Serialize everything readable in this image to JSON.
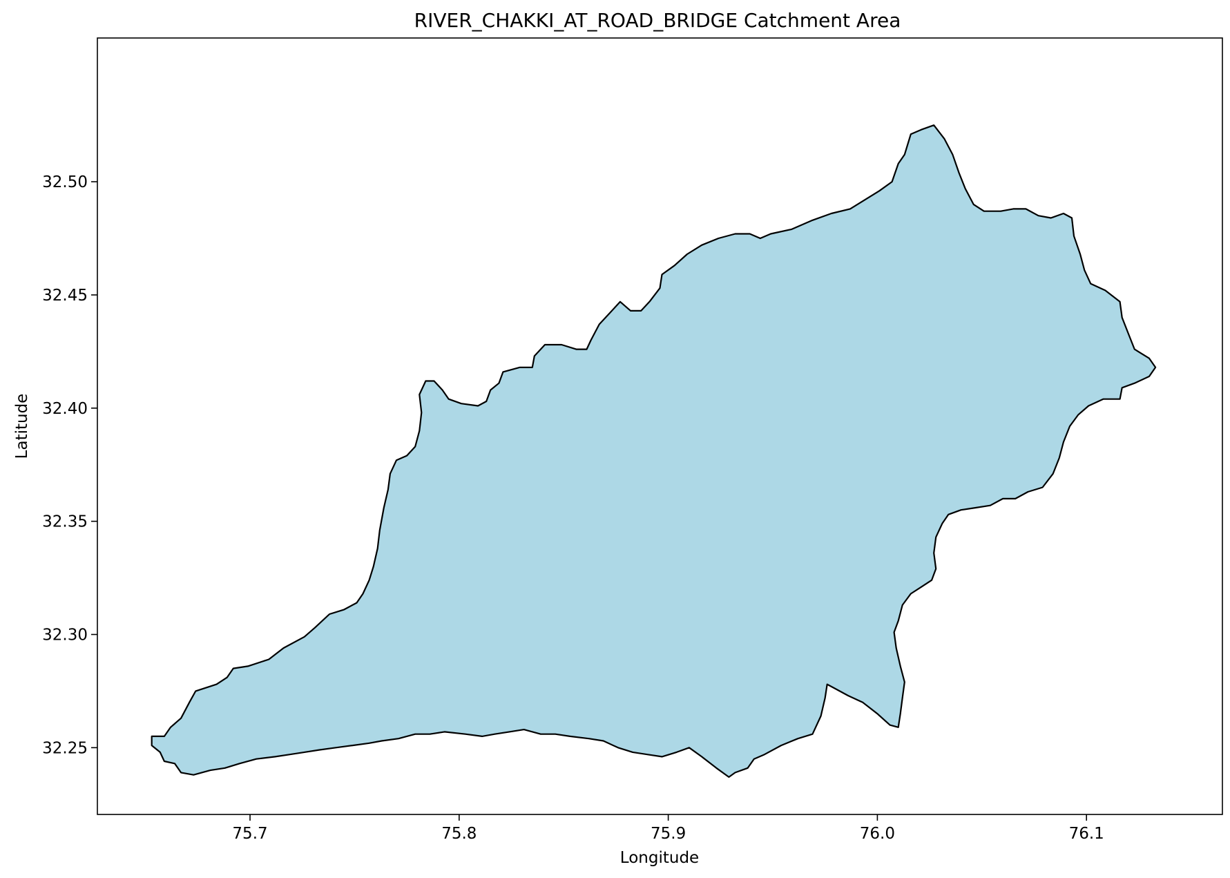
{
  "chart_data": {
    "type": "map",
    "title": "RIVER_CHAKKI_AT_ROAD_BRIDGE Catchment Area",
    "xlabel": "Longitude",
    "ylabel": "Latitude",
    "xlim": [
      75.627,
      76.165
    ],
    "ylim": [
      32.2205,
      32.5635
    ],
    "x_ticks": [
      {
        "value": 75.7,
        "label": "75.7"
      },
      {
        "value": 75.8,
        "label": "75.8"
      },
      {
        "value": 75.9,
        "label": "75.9"
      },
      {
        "value": 76.0,
        "label": "76.0"
      },
      {
        "value": 76.1,
        "label": "76.1"
      }
    ],
    "y_ticks": [
      {
        "value": 32.25,
        "label": "32.25"
      },
      {
        "value": 32.3,
        "label": "32.30"
      },
      {
        "value": 32.35,
        "label": "32.35"
      },
      {
        "value": 32.4,
        "label": "32.40"
      },
      {
        "value": 32.45,
        "label": "32.45"
      },
      {
        "value": 32.5,
        "label": "32.50"
      }
    ],
    "grid": false,
    "legend": "none",
    "fill_color": "#add8e6",
    "edge_color": "#000000",
    "catchment_boundary": [
      [
        75.653,
        32.251
      ],
      [
        75.653,
        32.255
      ],
      [
        75.659,
        32.255
      ],
      [
        75.662,
        32.259
      ],
      [
        75.667,
        32.263
      ],
      [
        75.671,
        32.27
      ],
      [
        75.674,
        32.275
      ],
      [
        75.684,
        32.278
      ],
      [
        75.689,
        32.281
      ],
      [
        75.692,
        32.285
      ],
      [
        75.699,
        32.286
      ],
      [
        75.709,
        32.289
      ],
      [
        75.716,
        32.294
      ],
      [
        75.726,
        32.299
      ],
      [
        75.731,
        32.303
      ],
      [
        75.738,
        32.309
      ],
      [
        75.745,
        32.311
      ],
      [
        75.751,
        32.314
      ],
      [
        75.754,
        32.318
      ],
      [
        75.757,
        32.324
      ],
      [
        75.759,
        32.33
      ],
      [
        75.761,
        32.338
      ],
      [
        75.762,
        32.346
      ],
      [
        75.764,
        32.356
      ],
      [
        75.766,
        32.364
      ],
      [
        75.767,
        32.371
      ],
      [
        75.77,
        32.377
      ],
      [
        75.775,
        32.379
      ],
      [
        75.779,
        32.383
      ],
      [
        75.781,
        32.39
      ],
      [
        75.782,
        32.398
      ],
      [
        75.781,
        32.406
      ],
      [
        75.784,
        32.412
      ],
      [
        75.788,
        32.412
      ],
      [
        75.792,
        32.408
      ],
      [
        75.795,
        32.404
      ],
      [
        75.801,
        32.402
      ],
      [
        75.809,
        32.401
      ],
      [
        75.813,
        32.403
      ],
      [
        75.815,
        32.408
      ],
      [
        75.819,
        32.411
      ],
      [
        75.821,
        32.416
      ],
      [
        75.829,
        32.418
      ],
      [
        75.835,
        32.418
      ],
      [
        75.836,
        32.423
      ],
      [
        75.841,
        32.428
      ],
      [
        75.849,
        32.428
      ],
      [
        75.856,
        32.426
      ],
      [
        75.861,
        32.426
      ],
      [
        75.863,
        32.43
      ],
      [
        75.867,
        32.437
      ],
      [
        75.872,
        32.442
      ],
      [
        75.877,
        32.447
      ],
      [
        75.882,
        32.443
      ],
      [
        75.887,
        32.443
      ],
      [
        75.891,
        32.447
      ],
      [
        75.896,
        32.453
      ],
      [
        75.897,
        32.459
      ],
      [
        75.903,
        32.463
      ],
      [
        75.909,
        32.468
      ],
      [
        75.916,
        32.472
      ],
      [
        75.924,
        32.475
      ],
      [
        75.932,
        32.477
      ],
      [
        75.939,
        32.477
      ],
      [
        75.944,
        32.475
      ],
      [
        75.949,
        32.477
      ],
      [
        75.959,
        32.479
      ],
      [
        75.969,
        32.483
      ],
      [
        75.978,
        32.486
      ],
      [
        75.987,
        32.488
      ],
      [
        75.994,
        32.492
      ],
      [
        76.001,
        32.496
      ],
      [
        76.007,
        32.5
      ],
      [
        76.01,
        32.508
      ],
      [
        76.013,
        32.512
      ],
      [
        76.016,
        32.521
      ],
      [
        76.021,
        32.523
      ],
      [
        76.027,
        32.525
      ],
      [
        76.032,
        32.519
      ],
      [
        76.036,
        32.512
      ],
      [
        76.039,
        32.504
      ],
      [
        76.042,
        32.497
      ],
      [
        76.046,
        32.49
      ],
      [
        76.051,
        32.487
      ],
      [
        76.059,
        32.487
      ],
      [
        76.065,
        32.488
      ],
      [
        76.071,
        32.488
      ],
      [
        76.077,
        32.485
      ],
      [
        76.083,
        32.484
      ],
      [
        76.089,
        32.486
      ],
      [
        76.093,
        32.484
      ],
      [
        76.094,
        32.476
      ],
      [
        76.097,
        32.468
      ],
      [
        76.099,
        32.461
      ],
      [
        76.102,
        32.455
      ],
      [
        76.109,
        32.452
      ],
      [
        76.116,
        32.447
      ],
      [
        76.117,
        32.44
      ],
      [
        76.12,
        32.433
      ],
      [
        76.123,
        32.426
      ],
      [
        76.13,
        32.422
      ],
      [
        76.133,
        32.418
      ],
      [
        76.13,
        32.414
      ],
      [
        76.123,
        32.411
      ],
      [
        76.117,
        32.409
      ],
      [
        76.116,
        32.404
      ],
      [
        76.108,
        32.404
      ],
      [
        76.101,
        32.401
      ],
      [
        76.096,
        32.397
      ],
      [
        76.092,
        32.392
      ],
      [
        76.089,
        32.385
      ],
      [
        76.087,
        32.378
      ],
      [
        76.084,
        32.371
      ],
      [
        76.079,
        32.365
      ],
      [
        76.072,
        32.363
      ],
      [
        76.066,
        32.36
      ],
      [
        76.06,
        32.36
      ],
      [
        76.054,
        32.357
      ],
      [
        76.047,
        32.356
      ],
      [
        76.04,
        32.355
      ],
      [
        76.034,
        32.353
      ],
      [
        76.031,
        32.349
      ],
      [
        76.028,
        32.343
      ],
      [
        76.027,
        32.336
      ],
      [
        76.028,
        32.329
      ],
      [
        76.026,
        32.324
      ],
      [
        76.021,
        32.321
      ],
      [
        76.016,
        32.318
      ],
      [
        76.012,
        32.313
      ],
      [
        76.01,
        32.306
      ],
      [
        76.008,
        32.301
      ],
      [
        76.009,
        32.294
      ],
      [
        76.011,
        32.286
      ],
      [
        76.013,
        32.279
      ],
      [
        76.012,
        32.272
      ],
      [
        76.011,
        32.265
      ],
      [
        76.01,
        32.259
      ],
      [
        76.006,
        32.26
      ],
      [
        76.0,
        32.265
      ],
      [
        75.993,
        32.27
      ],
      [
        75.986,
        32.273
      ],
      [
        75.98,
        32.276
      ],
      [
        75.976,
        32.278
      ],
      [
        75.975,
        32.272
      ],
      [
        75.973,
        32.264
      ],
      [
        75.969,
        32.256
      ],
      [
        75.962,
        32.254
      ],
      [
        75.954,
        32.251
      ],
      [
        75.946,
        32.247
      ],
      [
        75.941,
        32.245
      ],
      [
        75.938,
        32.241
      ],
      [
        75.932,
        32.239
      ],
      [
        75.929,
        32.237
      ],
      [
        75.923,
        32.241
      ],
      [
        75.916,
        32.246
      ],
      [
        75.91,
        32.25
      ],
      [
        75.904,
        32.248
      ],
      [
        75.897,
        32.246
      ],
      [
        75.89,
        32.247
      ],
      [
        75.883,
        32.248
      ],
      [
        75.876,
        32.25
      ],
      [
        75.869,
        32.253
      ],
      [
        75.862,
        32.254
      ],
      [
        75.853,
        32.255
      ],
      [
        75.846,
        32.256
      ],
      [
        75.839,
        32.256
      ],
      [
        75.831,
        32.258
      ],
      [
        75.824,
        32.257
      ],
      [
        75.817,
        32.256
      ],
      [
        75.811,
        32.255
      ],
      [
        75.803,
        32.256
      ],
      [
        75.793,
        32.257
      ],
      [
        75.786,
        32.256
      ],
      [
        75.779,
        32.256
      ],
      [
        75.771,
        32.254
      ],
      [
        75.763,
        32.253
      ],
      [
        75.757,
        32.252
      ],
      [
        75.749,
        32.251
      ],
      [
        75.741,
        32.25
      ],
      [
        75.733,
        32.249
      ],
      [
        75.726,
        32.248
      ],
      [
        75.719,
        32.247
      ],
      [
        75.712,
        32.246
      ],
      [
        75.703,
        32.245
      ],
      [
        75.695,
        32.243
      ],
      [
        75.688,
        32.241
      ],
      [
        75.681,
        32.24
      ],
      [
        75.673,
        32.238
      ],
      [
        75.667,
        32.239
      ],
      [
        75.664,
        32.243
      ],
      [
        75.659,
        32.244
      ],
      [
        75.657,
        32.248
      ],
      [
        75.653,
        32.251
      ]
    ]
  }
}
